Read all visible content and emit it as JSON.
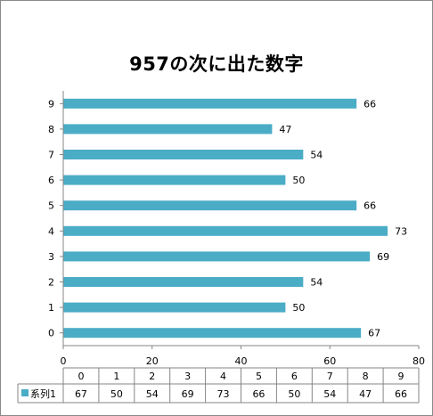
{
  "chart_data": {
    "type": "bar",
    "orientation": "horizontal",
    "title": "957の次に出た数字",
    "categories": [
      "0",
      "1",
      "2",
      "3",
      "4",
      "5",
      "6",
      "7",
      "8",
      "9"
    ],
    "series": [
      {
        "name": "系列1",
        "values": [
          67,
          50,
          54,
          69,
          73,
          66,
          50,
          54,
          47,
          66
        ],
        "color": "#4bacc6"
      }
    ],
    "xlim": [
      0,
      80
    ],
    "x_ticks": [
      "0",
      "20",
      "40",
      "60",
      "80"
    ],
    "grid": false,
    "data_labels": true,
    "data_table": true,
    "legend": "data-table"
  }
}
